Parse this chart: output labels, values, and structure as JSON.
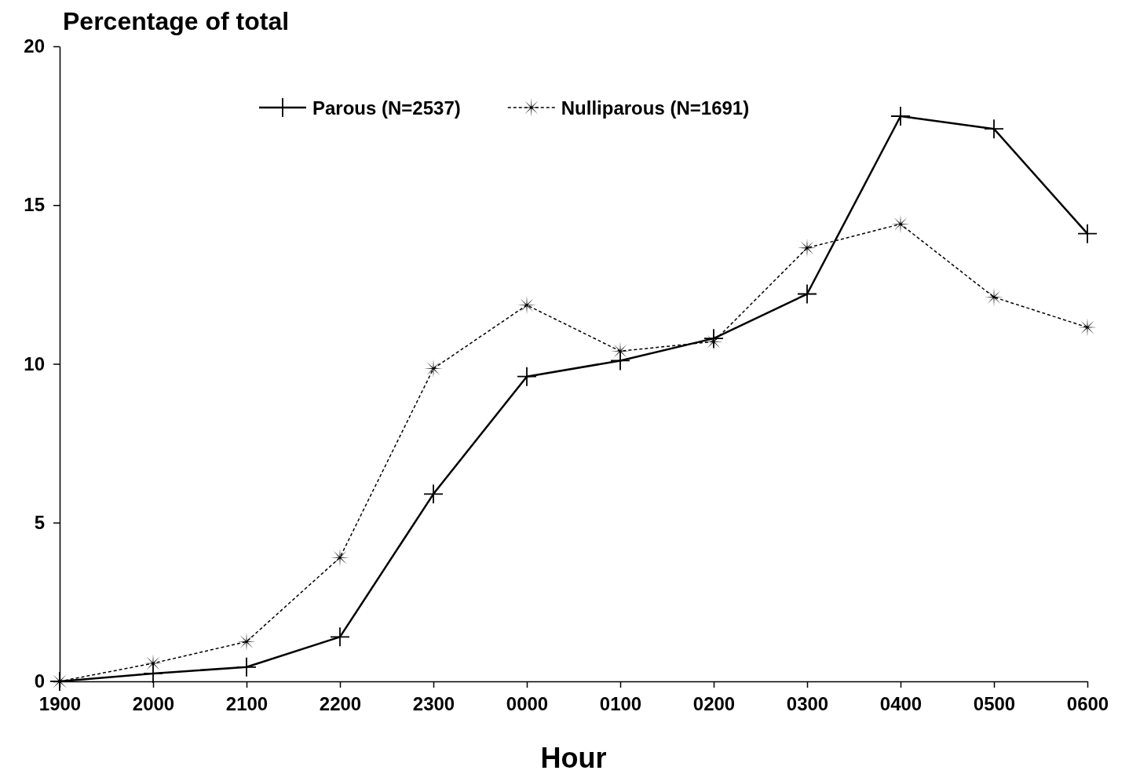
{
  "chart_data": {
    "type": "line",
    "ylabel": "Percentage of total",
    "xlabel": "Hour",
    "categories": [
      "1900",
      "2000",
      "2100",
      "2200",
      "2300",
      "0000",
      "0100",
      "0200",
      "0300",
      "0400",
      "0500",
      "0600"
    ],
    "ylim": [
      0,
      20
    ],
    "yticks": [
      0,
      5,
      10,
      15,
      20
    ],
    "grid": false,
    "legend": "top",
    "series": [
      {
        "name": "Parous (N=2537)",
        "color": "#000000",
        "marker": "cross",
        "line_style": "solid",
        "values": [
          0,
          0.25,
          0.45,
          1.4,
          5.9,
          9.6,
          10.1,
          10.8,
          12.2,
          17.8,
          17.4,
          14.1
        ]
      },
      {
        "name": "Nulliparous (N=1691)",
        "color": "#000000",
        "marker": "star",
        "line_style": "dashed",
        "values": [
          0,
          0.57,
          1.25,
          3.9,
          9.85,
          11.85,
          10.4,
          10.7,
          13.65,
          14.4,
          12.1,
          11.15
        ]
      }
    ]
  }
}
